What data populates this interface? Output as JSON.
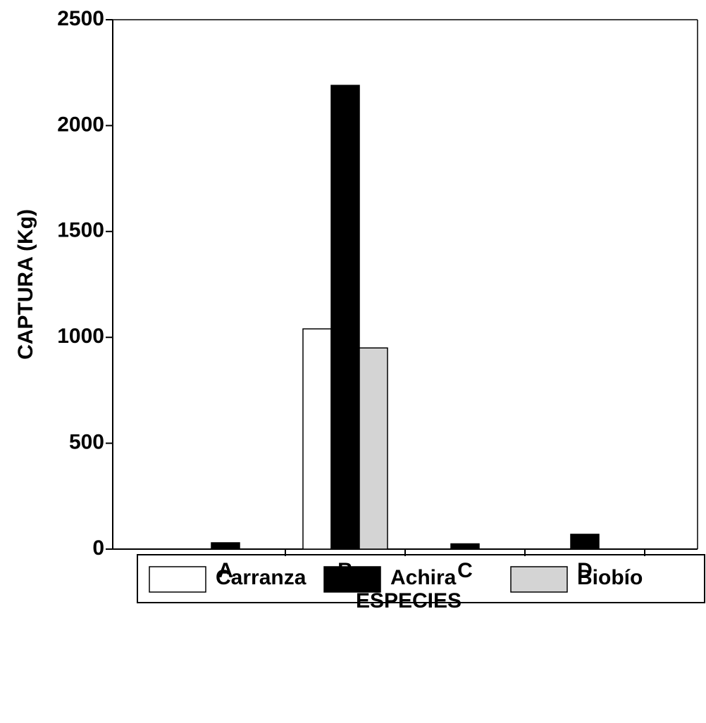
{
  "chart_data": {
    "type": "bar",
    "categories": [
      "A",
      "B",
      "C",
      "D"
    ],
    "series": [
      {
        "name": "Carranza",
        "color": "#ffffff",
        "values": [
          0,
          1040,
          0,
          0
        ]
      },
      {
        "name": "Achira",
        "color": "#000000",
        "values": [
          30,
          2190,
          25,
          70
        ]
      },
      {
        "name": "Biobío",
        "color": "#d4d4d4",
        "values": [
          0,
          950,
          0,
          0
        ]
      }
    ],
    "x_label": "ESPECIES",
    "y_label": "CAPTURA (Kg)",
    "ylim": [
      0,
      2500
    ],
    "yticks": [
      0,
      500,
      1000,
      1500,
      2000,
      2500
    ],
    "grid": false,
    "legend": "bottom"
  }
}
